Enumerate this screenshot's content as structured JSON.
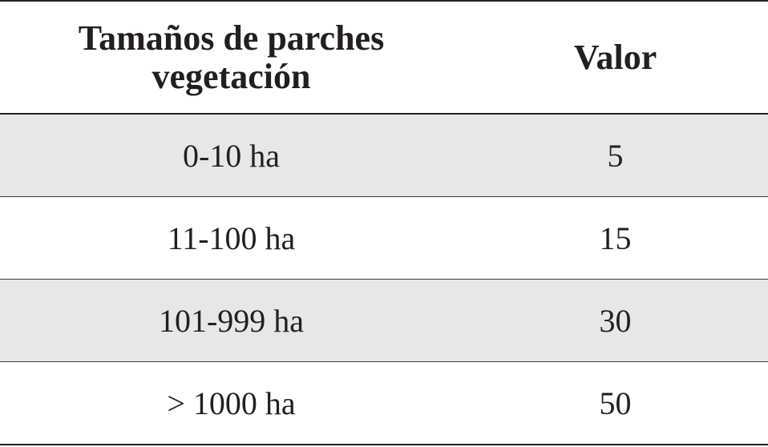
{
  "table": {
    "headers": [
      "Tamaños de parches vegetación",
      "Valor"
    ],
    "header_lines": [
      "Tamaños de parches",
      "vegetación"
    ],
    "rows": [
      [
        "0-10 ha",
        "5"
      ],
      [
        "11-100 ha",
        "15"
      ],
      [
        "101-999 ha",
        "30"
      ],
      [
        "> 1000 ha",
        "50"
      ]
    ],
    "shaded_row_color": "#e6e7e8"
  }
}
